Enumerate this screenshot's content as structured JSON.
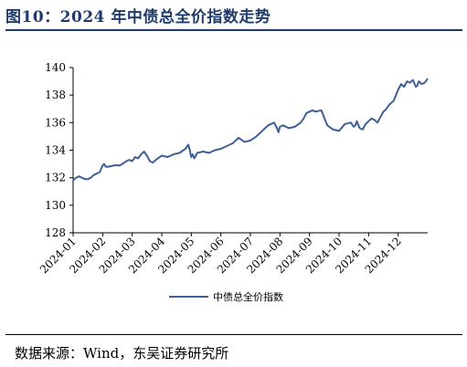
{
  "figure": {
    "title": "图10：2024 年中债总全价指数走势",
    "source": "数据来源：Wind，东吴证券研究所"
  },
  "chart_data": {
    "type": "line",
    "title": "",
    "xlabel": "",
    "ylabel": "",
    "ylim": [
      128,
      140
    ],
    "yticks": [
      "128",
      "130",
      "132",
      "134",
      "136",
      "138",
      "140"
    ],
    "xticks": [
      "2024-01",
      "2024-02",
      "2024-03",
      "2024-04",
      "2024-05",
      "2024-06",
      "2024-07",
      "2024-08",
      "2024-09",
      "2024-10",
      "2024-11",
      "2024-12"
    ],
    "legend_position": "bottom-center",
    "grid": false,
    "line_color": "#3f5f97",
    "series": [
      {
        "name": "中债总全价指数",
        "x": [
          0.0,
          0.1,
          0.2,
          0.3,
          0.4,
          0.5,
          0.6,
          0.7,
          0.8,
          0.9,
          1.0,
          1.05,
          1.1,
          1.2,
          1.4,
          1.6,
          1.8,
          1.9,
          2.0,
          2.1,
          2.2,
          2.3,
          2.4,
          2.5,
          2.6,
          2.7,
          2.8,
          3.0,
          3.2,
          3.4,
          3.6,
          3.8,
          3.9,
          3.95,
          4.0,
          4.05,
          4.1,
          4.2,
          4.4,
          4.6,
          4.8,
          5.0,
          5.2,
          5.4,
          5.6,
          5.8,
          6.0,
          6.2,
          6.4,
          6.6,
          6.8,
          6.9,
          6.95,
          7.0,
          7.1,
          7.3,
          7.5,
          7.7,
          7.8,
          7.85,
          7.9,
          8.0,
          8.1,
          8.2,
          8.4,
          8.6,
          8.8,
          9.0,
          9.2,
          9.4,
          9.5,
          9.55,
          9.6,
          9.7,
          9.8,
          9.9,
          10.0,
          10.1,
          10.2,
          10.3,
          10.4,
          10.5,
          10.6,
          10.7,
          10.85,
          11.0,
          11.1,
          11.2,
          11.3,
          11.4,
          11.5,
          11.6,
          11.65,
          11.7,
          11.8,
          11.9,
          12.0
        ],
        "values": [
          131.8,
          132.0,
          132.1,
          132.0,
          131.9,
          131.9,
          132.0,
          132.2,
          132.3,
          132.4,
          132.9,
          133.0,
          132.8,
          132.8,
          132.9,
          132.9,
          133.2,
          133.3,
          133.2,
          133.5,
          133.4,
          133.7,
          133.9,
          133.6,
          133.2,
          133.1,
          133.3,
          133.6,
          133.5,
          133.7,
          133.8,
          134.1,
          134.4,
          134.0,
          133.5,
          133.7,
          133.4,
          133.8,
          133.9,
          133.8,
          134.0,
          134.1,
          134.3,
          134.5,
          134.9,
          134.6,
          134.7,
          135.0,
          135.4,
          135.8,
          136.0,
          135.6,
          135.3,
          135.7,
          135.8,
          135.6,
          135.7,
          136.0,
          136.3,
          136.5,
          136.7,
          136.8,
          136.9,
          136.8,
          136.9,
          135.8,
          135.5,
          135.4,
          135.9,
          136.0,
          135.7,
          135.8,
          136.1,
          135.6,
          135.5,
          135.9,
          136.1,
          136.3,
          136.2,
          136.0,
          136.4,
          136.8,
          137.0,
          137.3,
          137.6,
          138.4,
          138.8,
          138.6,
          139.0,
          138.9,
          139.1,
          138.6,
          138.7,
          139.0,
          138.8,
          138.9,
          139.2
        ]
      }
    ]
  }
}
